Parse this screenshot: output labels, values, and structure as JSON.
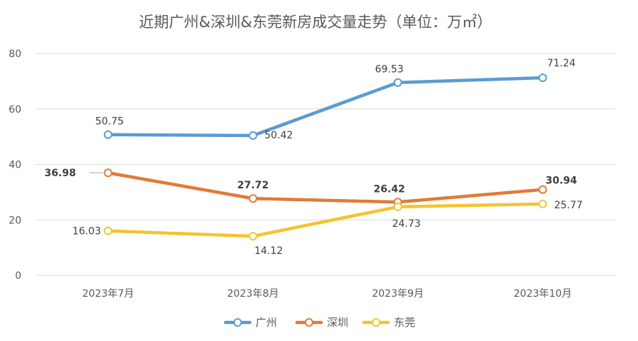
{
  "chart_data": {
    "type": "line",
    "title": "近期广州&深圳&东莞新房成交量走势（单位：万㎡）",
    "xlabel": "",
    "ylabel": "",
    "categories": [
      "2023年7月",
      "2023年8月",
      "2023年9月",
      "2023年10月"
    ],
    "ylim": [
      0,
      80
    ],
    "yticks": [
      0,
      20,
      40,
      60,
      80
    ],
    "grid": true,
    "legend": "bottom",
    "series": [
      {
        "name": "广州",
        "color": "#5b9bd5",
        "values": [
          50.75,
          50.42,
          69.53,
          71.24
        ],
        "labels": [
          "50.75",
          "50.42",
          "69.53",
          "71.24"
        ],
        "bold": false
      },
      {
        "name": "深圳",
        "color": "#e07b39",
        "values": [
          36.98,
          27.72,
          26.42,
          30.94
        ],
        "labels": [
          "36.98",
          "27.72",
          "26.42",
          "30.94"
        ],
        "bold": true
      },
      {
        "name": "东莞",
        "color": "#f4c430",
        "values": [
          16.03,
          14.12,
          24.73,
          25.77
        ],
        "labels": [
          "16.03",
          "14.12",
          "24.73",
          "25.77"
        ],
        "bold": false
      }
    ]
  }
}
